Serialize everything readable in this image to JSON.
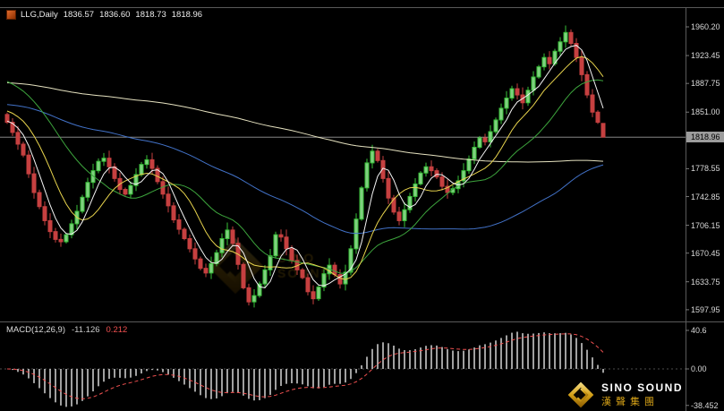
{
  "window": {
    "header": {
      "symbol_period": "LLG,Daily",
      "open": "1836.57",
      "high": "1836.60",
      "low": "1818.73",
      "close": "1818.96"
    }
  },
  "price_axis": {
    "labels": [
      "1960.20",
      "1923.45",
      "1887.75",
      "1851.00",
      "1778.55",
      "1742.85",
      "1706.15",
      "1670.45",
      "1633.75",
      "1597.95"
    ],
    "current_price": "1818.96"
  },
  "macd_panel": {
    "label": "MACD(12,26,9)",
    "main_value": "-11.126",
    "signal_value": "0.212",
    "axis_labels": [
      "40.6",
      "0.00",
      "-38.452"
    ]
  },
  "branding": {
    "logo_text": "SINO SOUND",
    "logo_cn": "漢聲集團",
    "watermark_text": "SINO SOUND"
  },
  "colors": {
    "background": "#000000",
    "bull": "#39c239",
    "bull_fill": "#7fd07f",
    "bear": "#c64040",
    "macd_histogram": "#c9c9c9",
    "macd_signal": "#ef5050",
    "current_price_line": "#9a9a9a",
    "separator": "#5a5a5a",
    "axis_text": "#d9d9d9",
    "gold": "#d4a017"
  },
  "chart_data": [
    {
      "type": "candlestick",
      "title": "LLG,Daily",
      "ylim": [
        1597.95,
        1960.2
      ],
      "y_ticks": [
        1960.2,
        1923.45,
        1887.75,
        1851.0,
        1778.55,
        1742.85,
        1706.15,
        1670.45,
        1633.75,
        1597.95
      ],
      "current_price": 1818.96,
      "first_open": 1848,
      "last_ohlc": {
        "open": 1836.57,
        "high": 1836.6,
        "low": 1818.73,
        "close": 1818.96
      },
      "closes": [
        1838,
        1825,
        1810,
        1796,
        1772,
        1748,
        1730,
        1712,
        1698,
        1688,
        1685,
        1694,
        1708,
        1724,
        1742,
        1761,
        1776,
        1788,
        1792,
        1781,
        1766,
        1752,
        1746,
        1757,
        1771,
        1784,
        1790,
        1779,
        1762,
        1746,
        1731,
        1713,
        1701,
        1689,
        1676,
        1663,
        1651,
        1645,
        1657,
        1671,
        1689,
        1700,
        1683,
        1656,
        1626,
        1608,
        1616,
        1631,
        1649,
        1667,
        1694,
        1691,
        1676,
        1661,
        1649,
        1639,
        1621,
        1612,
        1627,
        1644,
        1655,
        1643,
        1631,
        1646,
        1676,
        1714,
        1754,
        1786,
        1801,
        1789,
        1766,
        1741,
        1723,
        1712,
        1726,
        1743,
        1759,
        1773,
        1781,
        1776,
        1768,
        1756,
        1748,
        1753,
        1763,
        1776,
        1791,
        1806,
        1818,
        1813,
        1826,
        1841,
        1856,
        1869,
        1881,
        1873,
        1863,
        1879,
        1896,
        1909,
        1921,
        1913,
        1929,
        1941,
        1953,
        1939,
        1921,
        1899,
        1873,
        1851,
        1838,
        1818.96
      ],
      "moving_averages": [
        {
          "period": 150,
          "color": "#e6e2c0",
          "left_level": 1889
        },
        {
          "period": 60,
          "color": "#4272c8",
          "left_level": 1861
        },
        {
          "period": 20,
          "color": "#3da53d",
          "left_level": 1893
        },
        {
          "period": 10,
          "color": "#e8d44d",
          "left_level": 1854
        },
        {
          "period": 5,
          "color": "#f5f5f5",
          "left_level": 1840
        }
      ]
    },
    {
      "type": "bar",
      "title": "MACD(12,26,9)",
      "fast": 12,
      "slow": 26,
      "signal_period": 9,
      "main_last": -11.126,
      "signal_last": 0.212,
      "ylim": [
        -38.452,
        40.6
      ]
    }
  ]
}
